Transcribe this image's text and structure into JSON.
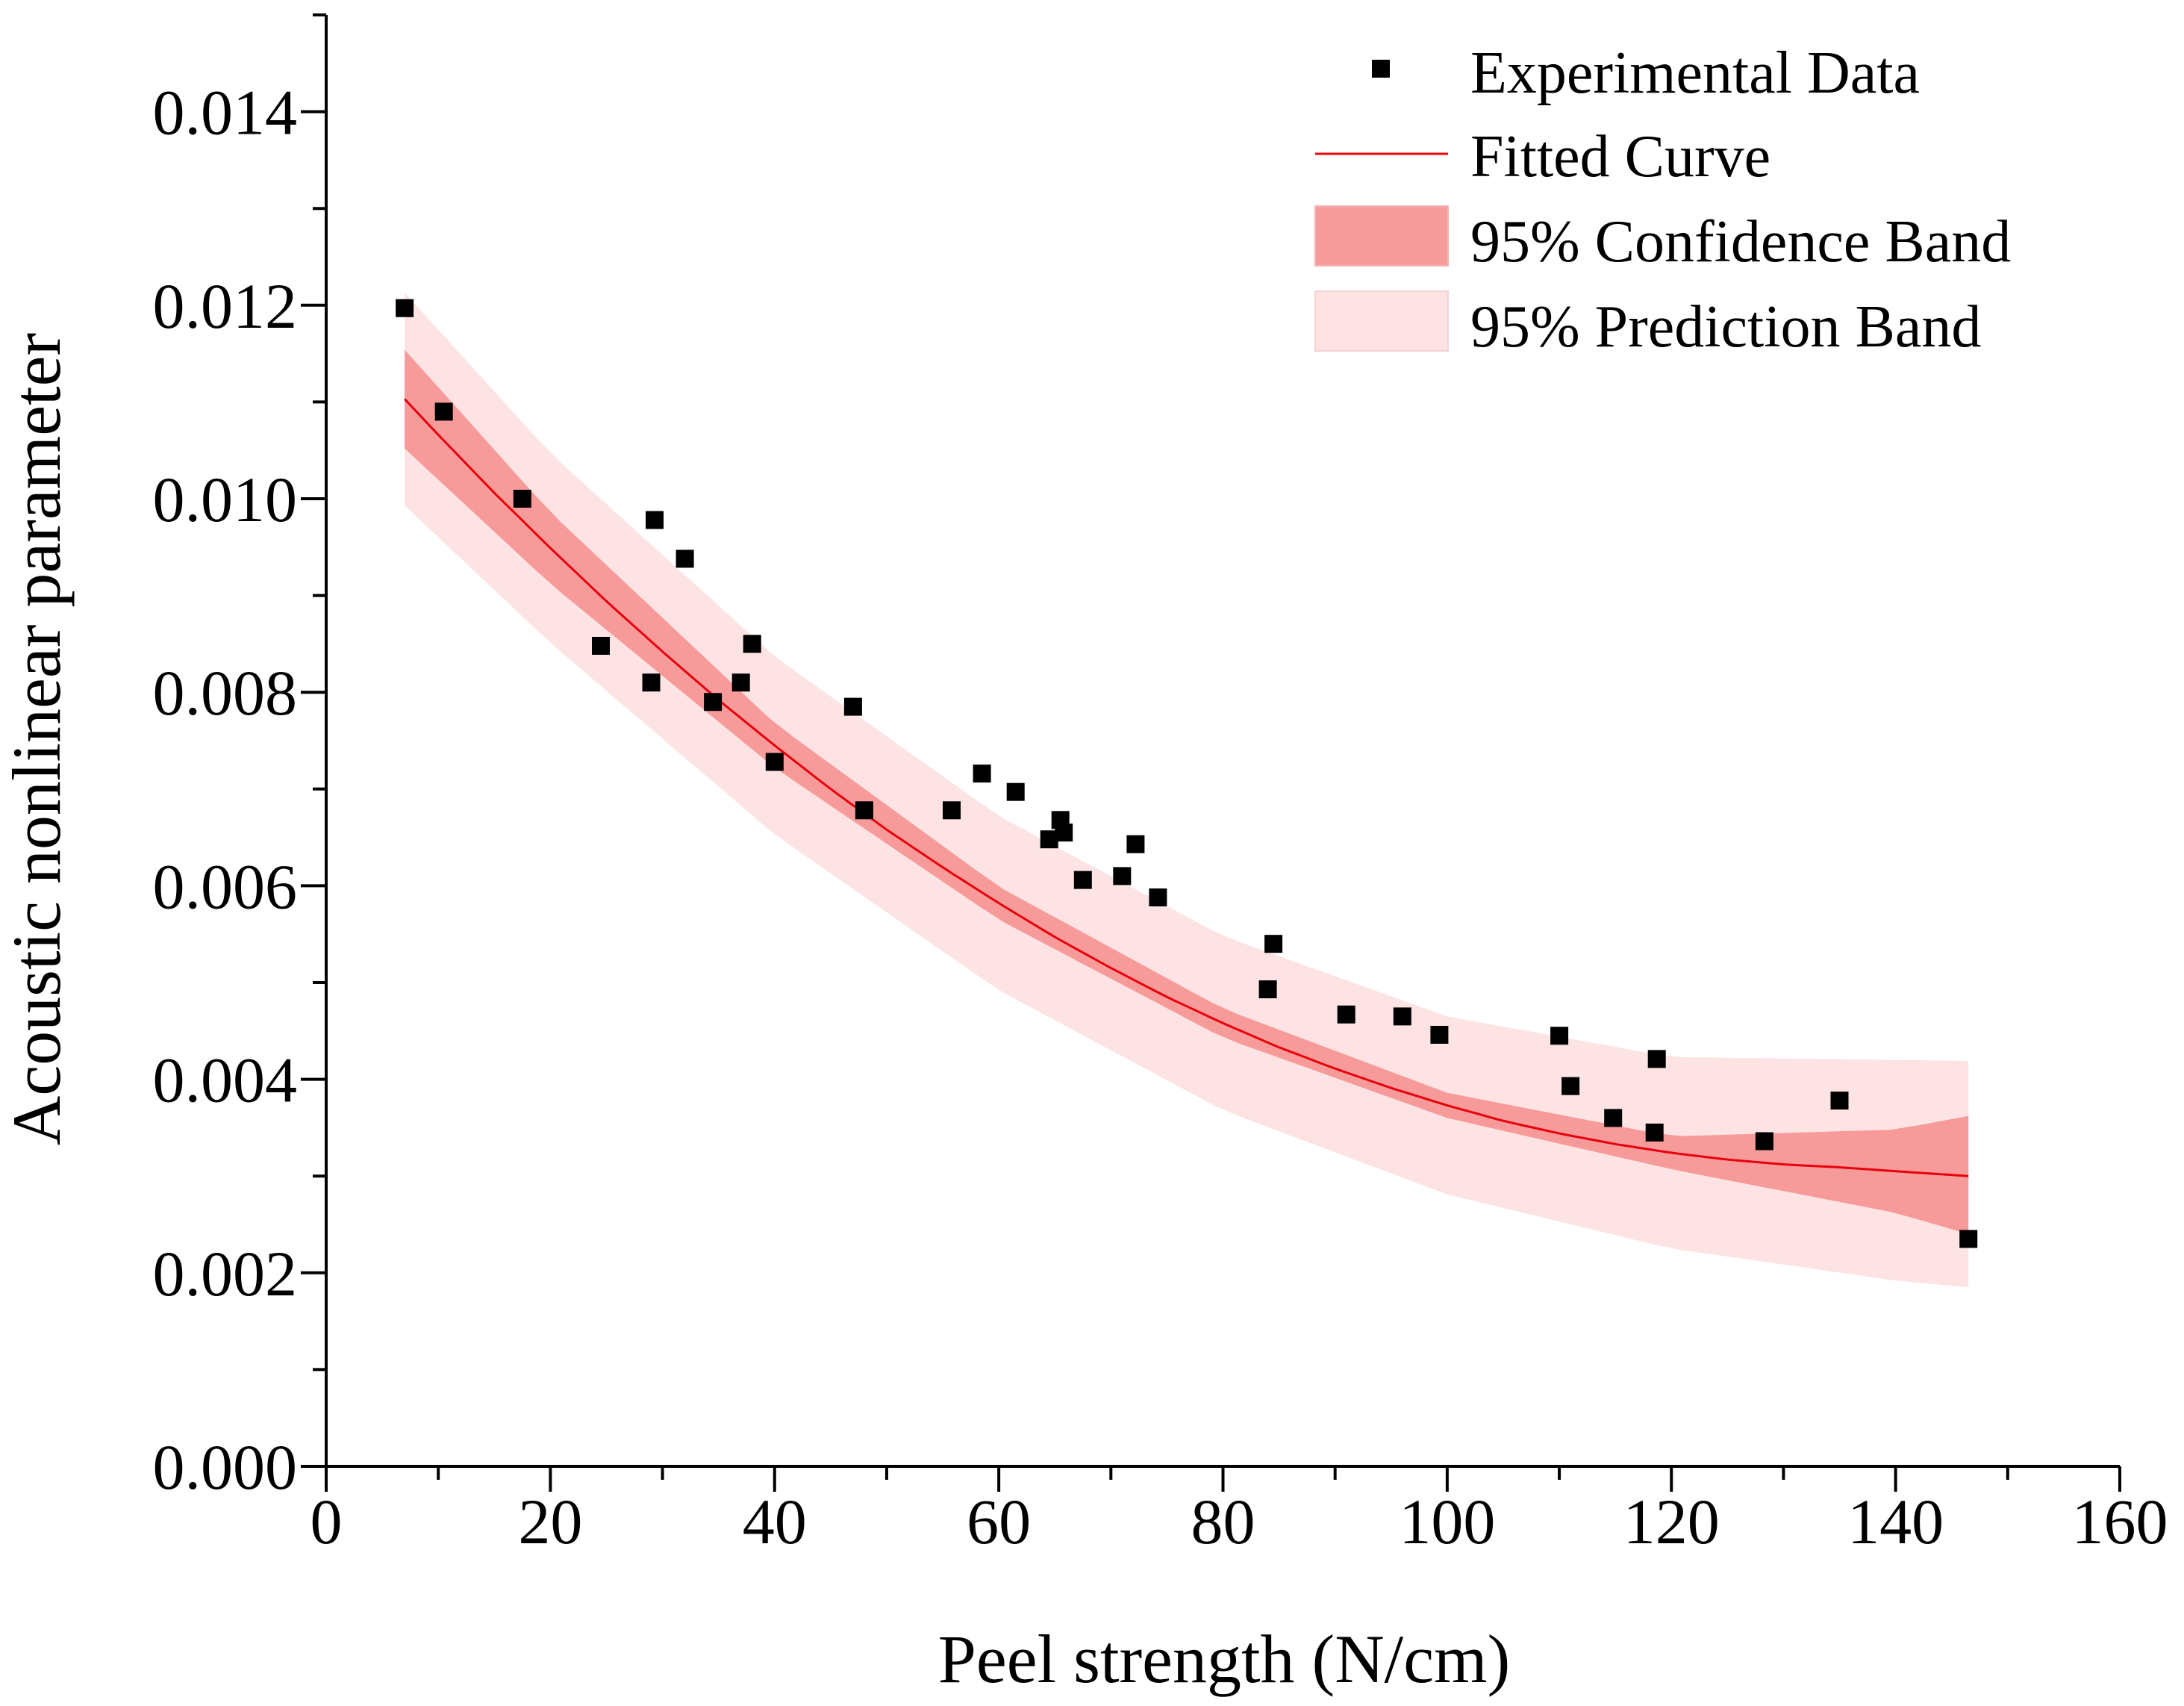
{
  "chart_data": {
    "type": "scatter",
    "title": "",
    "xlabel": "Peel strength (N/cm)",
    "ylabel": "Acoustic nonlinear parameter",
    "xlim": [
      0,
      160
    ],
    "ylim": [
      0,
      0.015
    ],
    "x_ticks": [
      {
        "value": 0,
        "label": "0"
      },
      {
        "value": 20,
        "label": "20"
      },
      {
        "value": 40,
        "label": "40"
      },
      {
        "value": 60,
        "label": "60"
      },
      {
        "value": 80,
        "label": "80"
      },
      {
        "value": 100,
        "label": "100"
      },
      {
        "value": 120,
        "label": "120"
      },
      {
        "value": 140,
        "label": "140"
      },
      {
        "value": 160,
        "label": "160"
      }
    ],
    "y_ticks": [
      {
        "value": 0.0,
        "label": "0.000"
      },
      {
        "value": 0.002,
        "label": "0.002"
      },
      {
        "value": 0.004,
        "label": "0.004"
      },
      {
        "value": 0.006,
        "label": "0.006"
      },
      {
        "value": 0.008,
        "label": "0.008"
      },
      {
        "value": 0.01,
        "label": "0.010"
      },
      {
        "value": 0.012,
        "label": "0.012"
      },
      {
        "value": 0.014,
        "label": "0.014"
      }
    ],
    "legend": {
      "position": "top-right",
      "items": [
        {
          "key": "data",
          "label": "Experimental Data"
        },
        {
          "key": "fit",
          "label": "Fitted Curve"
        },
        {
          "key": "conf",
          "label": "95% Confidence Band"
        },
        {
          "key": "pred",
          "label": "95% Prediction Band"
        }
      ]
    },
    "colors": {
      "data": "#000000",
      "fit": "#e8000b",
      "confidence_band": "#f79a9a",
      "prediction_band": "#fde3e3",
      "axis": "#000000"
    },
    "series": [
      {
        "name": "Experimental Data",
        "kind": "scatter",
        "points": [
          {
            "x": 7,
            "y": 0.01197
          },
          {
            "x": 10.5,
            "y": 0.0109
          },
          {
            "x": 17.5,
            "y": 0.01
          },
          {
            "x": 24.5,
            "y": 0.00848
          },
          {
            "x": 29,
            "y": 0.0081
          },
          {
            "x": 29.3,
            "y": 0.00978
          },
          {
            "x": 32,
            "y": 0.00938
          },
          {
            "x": 34.5,
            "y": 0.0079
          },
          {
            "x": 37,
            "y": 0.0081
          },
          {
            "x": 38,
            "y": 0.0085
          },
          {
            "x": 40,
            "y": 0.00728
          },
          {
            "x": 47,
            "y": 0.00785
          },
          {
            "x": 48,
            "y": 0.00678
          },
          {
            "x": 55.8,
            "y": 0.00678
          },
          {
            "x": 58.5,
            "y": 0.00716
          },
          {
            "x": 61.5,
            "y": 0.00697
          },
          {
            "x": 64.5,
            "y": 0.00648
          },
          {
            "x": 65.5,
            "y": 0.00668
          },
          {
            "x": 65.8,
            "y": 0.00655
          },
          {
            "x": 67.5,
            "y": 0.00606
          },
          {
            "x": 71,
            "y": 0.0061
          },
          {
            "x": 72.2,
            "y": 0.00643
          },
          {
            "x": 74.2,
            "y": 0.00588
          },
          {
            "x": 84,
            "y": 0.00493
          },
          {
            "x": 84.5,
            "y": 0.0054
          },
          {
            "x": 91,
            "y": 0.00467
          },
          {
            "x": 96,
            "y": 0.00465
          },
          {
            "x": 99.3,
            "y": 0.00446
          },
          {
            "x": 110,
            "y": 0.00445
          },
          {
            "x": 111,
            "y": 0.00393
          },
          {
            "x": 114.8,
            "y": 0.0036
          },
          {
            "x": 118.5,
            "y": 0.00345
          },
          {
            "x": 118.7,
            "y": 0.00421
          },
          {
            "x": 128.3,
            "y": 0.00336
          },
          {
            "x": 135,
            "y": 0.00378
          },
          {
            "x": 146.5,
            "y": 0.00235
          }
        ]
      },
      {
        "name": "Fitted Curve",
        "kind": "line",
        "x": [
          7,
          10,
          15,
          20,
          25,
          30,
          35,
          40,
          45,
          50,
          55,
          60,
          65,
          70,
          75,
          80,
          85,
          90,
          95,
          100,
          105,
          110,
          115,
          120,
          125,
          130,
          135,
          140,
          146.5
        ],
        "y": [
          0.01103,
          0.01066,
          0.01006,
          0.00949,
          0.00894,
          0.00842,
          0.00792,
          0.00745,
          0.007,
          0.00658,
          0.00619,
          0.00582,
          0.00547,
          0.00515,
          0.00485,
          0.00458,
          0.00433,
          0.00411,
          0.00391,
          0.00373,
          0.00357,
          0.00344,
          0.00333,
          0.00324,
          0.00317,
          0.00312,
          0.00309,
          0.00305,
          0.003
        ]
      },
      {
        "name": "95% Confidence Band",
        "kind": "band",
        "x": [
          7,
          20,
          40,
          60,
          80,
          100,
          120,
          140,
          146.5
        ],
        "lower": [
          0.01052,
          0.00912,
          0.00722,
          0.00565,
          0.00443,
          0.0036,
          0.00307,
          0.00262,
          0.0024
        ],
        "upper": [
          0.01154,
          0.00986,
          0.00768,
          0.00599,
          0.00473,
          0.00386,
          0.00341,
          0.00348,
          0.00362
        ]
      },
      {
        "name": "95% Prediction Band",
        "kind": "band",
        "x": [
          7,
          20,
          40,
          60,
          80,
          100,
          120,
          140,
          146.5
        ],
        "lower": [
          0.00993,
          0.00851,
          0.00653,
          0.00492,
          0.00368,
          0.00281,
          0.00225,
          0.00192,
          0.00185
        ],
        "upper": [
          0.01213,
          0.01047,
          0.00837,
          0.00672,
          0.00548,
          0.00465,
          0.00423,
          0.0042,
          0.00419
        ]
      }
    ]
  }
}
